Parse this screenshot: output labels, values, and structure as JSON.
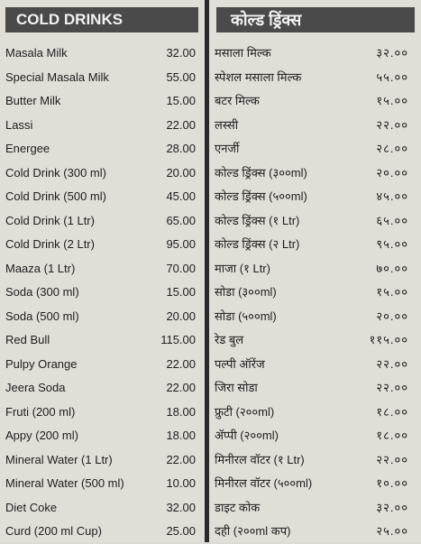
{
  "english": {
    "title": "COLD DRINKS",
    "items": [
      {
        "name": "Masala Milk",
        "price": "32.00"
      },
      {
        "name": "Special Masala Milk",
        "price": "55.00"
      },
      {
        "name": "Butter Milk",
        "price": "15.00"
      },
      {
        "name": "Lassi",
        "price": "22.00"
      },
      {
        "name": "Energee",
        "price": "28.00"
      },
      {
        "name": "Cold Drink (300 ml)",
        "price": "20.00"
      },
      {
        "name": "Cold Drink (500 ml)",
        "price": "45.00"
      },
      {
        "name": "Cold Drink (1 Ltr)",
        "price": "65.00"
      },
      {
        "name": "Cold Drink (2 Ltr)",
        "price": "95.00"
      },
      {
        "name": "Maaza (1 Ltr)",
        "price": "70.00"
      },
      {
        "name": "Soda (300 ml)",
        "price": "15.00"
      },
      {
        "name": "Soda (500 ml)",
        "price": "20.00"
      },
      {
        "name": "Red Bull",
        "price": "115.00"
      },
      {
        "name": "Pulpy Orange",
        "price": "22.00"
      },
      {
        "name": "Jeera Soda",
        "price": "22.00"
      },
      {
        "name": "Fruti (200 ml)",
        "price": "18.00"
      },
      {
        "name": "Appy (200 ml)",
        "price": "18.00"
      },
      {
        "name": "Mineral Water (1 Ltr)",
        "price": "22.00"
      },
      {
        "name": "Mineral Water (500 ml)",
        "price": "10.00"
      },
      {
        "name": "Diet Coke",
        "price": "32.00"
      },
      {
        "name": "Curd (200 ml Cup)",
        "price": "25.00"
      }
    ]
  },
  "marathi": {
    "title": "कोल्ड ड्रिंक्स",
    "items": [
      {
        "name": "मसाला मिल्क",
        "price": "३२.००"
      },
      {
        "name": "स्पेशल मसाला मिल्क",
        "price": "५५.००"
      },
      {
        "name": "बटर मिल्क",
        "price": "१५.००"
      },
      {
        "name": "लस्सी",
        "price": "२२.००"
      },
      {
        "name": "एनर्जी",
        "price": "२८.००"
      },
      {
        "name": "कोल्ड ड्रिंक्स (३००ml)",
        "price": "२०.००"
      },
      {
        "name": "कोल्ड ड्रिंक्स (५००ml)",
        "price": "४५.००"
      },
      {
        "name": "कोल्ड ड्रिंक्स (१ Ltr)",
        "price": "६५.००"
      },
      {
        "name": "कोल्ड ड्रिंक्स (२ Ltr)",
        "price": "९५.००"
      },
      {
        "name": "माजा (१ Ltr)",
        "price": "७०.००"
      },
      {
        "name": "सोडा (३००ml)",
        "price": "१५.००"
      },
      {
        "name": "सोडा (५००ml)",
        "price": "२०.००"
      },
      {
        "name": "रेड बुल",
        "price": "११५.००"
      },
      {
        "name": "पल्पी ऑरेंज",
        "price": "२२.००"
      },
      {
        "name": "जिरा सोडा",
        "price": "२२.००"
      },
      {
        "name": "फ्रुटी (२००ml)",
        "price": "१८.००"
      },
      {
        "name": "ॲप्पी (२००ml)",
        "price": "१८.००"
      },
      {
        "name": "मिनीरल वॉटर (१ Ltr)",
        "price": "२२.००"
      },
      {
        "name": "मिनीरल वॉटर (५००ml)",
        "price": "१०.००"
      },
      {
        "name": "डाइट कोक",
        "price": "३२.००"
      },
      {
        "name": "दही (२००ml कप)",
        "price": "२५.००"
      }
    ]
  },
  "colors": {
    "header_bg": "#4a4a4a",
    "header_text": "#f2f2f2",
    "paper": "#e0ded7",
    "divider": "#2a2a2a"
  }
}
